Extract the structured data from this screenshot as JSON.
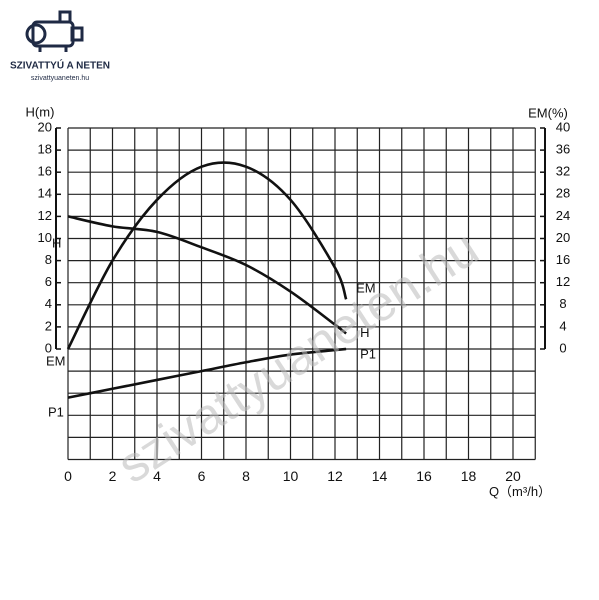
{
  "logo": {
    "title": "SZIVATTYÚ A NETEN",
    "url": "szivattyuaneten.hu"
  },
  "watermark": "szivattyuaneten.hu",
  "chart_data": {
    "type": "line",
    "y_label": "H(m)",
    "y2_label": "EM(%)",
    "x_label": "Q（m³/h）",
    "x": [
      0,
      2,
      4,
      6,
      8,
      10,
      12,
      12.5
    ],
    "series": [
      {
        "name": "H",
        "color": "#111111",
        "values": [
          12,
          11.1,
          10.6,
          9.2,
          7.6,
          5.2,
          2.2,
          1.4
        ]
      },
      {
        "name": "EM",
        "color": "#111111",
        "axis": "y2",
        "values": [
          0,
          16,
          27,
          33,
          33,
          27,
          14.7,
          9
        ]
      },
      {
        "name": "P1",
        "color": "#111111",
        "values": [
          -4.4,
          -3.6,
          -2.8,
          -2.0,
          -1.2,
          -0.5,
          -0.1,
          0
        ]
      }
    ],
    "xlim": [
      0,
      21
    ],
    "xticks": [
      0,
      2,
      4,
      6,
      8,
      10,
      12,
      14,
      16,
      18,
      20
    ],
    "ylim": [
      -10,
      20
    ],
    "yticks": [
      0,
      2,
      4,
      6,
      8,
      10,
      12,
      14,
      16,
      18,
      20
    ],
    "y2lim": [
      -20,
      40
    ],
    "y2ticks": [
      0,
      4,
      8,
      12,
      16,
      20,
      24,
      28,
      32,
      36,
      40
    ],
    "grid": true
  }
}
